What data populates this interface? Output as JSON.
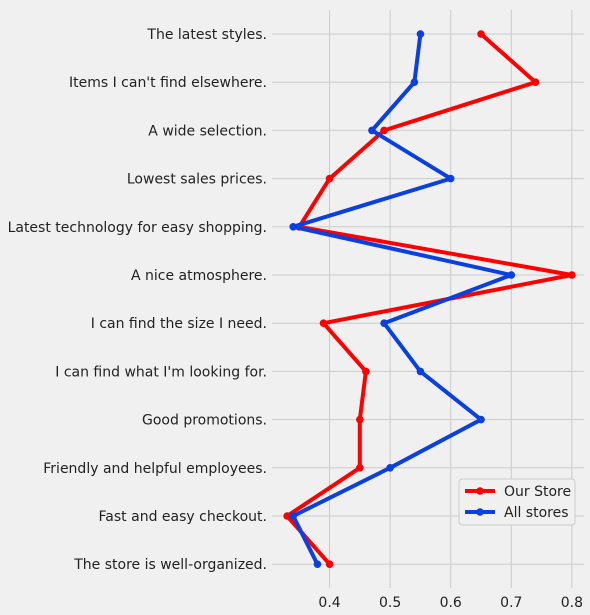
{
  "chart_data": {
    "type": "line",
    "orientation": "horizontal",
    "title": "",
    "xlabel": "",
    "ylabel": "",
    "categories": [
      "The latest styles.",
      "Items I can't find elsewhere.",
      "A wide selection.",
      "Lowest sales prices.",
      "Latest technology for easy shopping.",
      "A nice atmosphere.",
      "I can find the size I need.",
      "I can find what I'm looking for.",
      "Good promotions.",
      "Friendly and helpful employees.",
      "Fast and easy checkout.",
      "The store is well-organized."
    ],
    "series": [
      {
        "name": "Our Store",
        "color": "#ff0000",
        "values": [
          0.65,
          0.74,
          0.49,
          0.4,
          0.35,
          0.8,
          0.39,
          0.46,
          0.45,
          0.45,
          0.33,
          0.4
        ]
      },
      {
        "name": "All stores",
        "color": "#0a3fe0",
        "values": [
          0.55,
          0.54,
          0.47,
          0.6,
          0.34,
          0.7,
          0.49,
          0.55,
          0.65,
          0.5,
          0.34,
          0.38
        ]
      }
    ],
    "xticks": [
      "0.4",
      "0.5",
      "0.6",
      "0.7",
      "0.8"
    ],
    "xtick_values": [
      0.4,
      0.5,
      0.6,
      0.7,
      0.8
    ],
    "xlim": [
      0.305,
      0.82
    ],
    "grid": true,
    "legend_position": "lower-right"
  }
}
